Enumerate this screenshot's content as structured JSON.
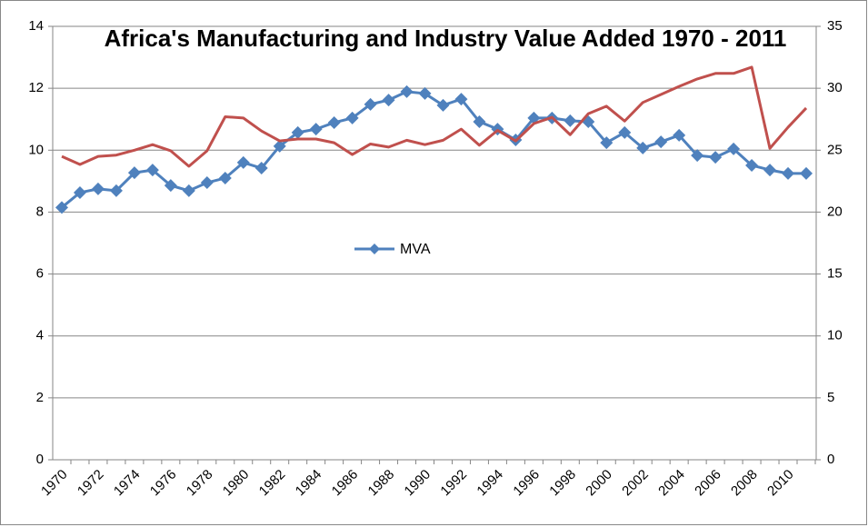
{
  "chart_data": {
    "type": "line",
    "title": "Africa's Manufacturing and Industry Value Added 1970 - 2011",
    "categories": [
      "1970",
      null,
      "1972",
      null,
      "1974",
      null,
      "1976",
      null,
      "1978",
      null,
      "1980",
      null,
      "1982",
      null,
      "1984",
      null,
      "1986",
      null,
      "1988",
      null,
      "1990",
      null,
      "1992",
      null,
      "1994",
      null,
      "1996",
      null,
      "1998",
      null,
      "2000",
      null,
      "2002",
      null,
      "2004",
      null,
      "2006",
      null,
      "2008",
      null,
      "2010",
      null
    ],
    "series": [
      {
        "name": "MVA",
        "color": "#4f81bd",
        "marker": "diamond",
        "values": [
          8.15,
          8.63,
          8.75,
          8.69,
          9.27,
          9.36,
          8.86,
          8.69,
          8.95,
          9.1,
          9.6,
          9.42,
          10.13,
          10.57,
          10.68,
          10.89,
          11.04,
          11.48,
          11.62,
          11.89,
          11.83,
          11.45,
          11.65,
          10.92,
          10.68,
          10.33,
          11.04,
          11.04,
          10.95,
          10.92,
          10.24,
          10.57,
          10.07,
          10.27,
          10.48,
          9.83,
          9.77,
          10.04,
          9.51,
          9.36,
          9.25,
          9.25
        ]
      },
      {
        "color": "#c0504d",
        "axis": "y2",
        "values": [
          24.5,
          23.85,
          24.5,
          24.6,
          25.0,
          25.45,
          24.95,
          23.7,
          24.95,
          27.7,
          27.6,
          26.55,
          25.75,
          25.9,
          25.9,
          25.6,
          24.65,
          25.5,
          25.25,
          25.8,
          25.45,
          25.8,
          26.7,
          25.4,
          26.6,
          25.75,
          27.15,
          27.65,
          26.25,
          27.95,
          28.55,
          27.35,
          28.85,
          29.5,
          30.15,
          30.75,
          31.2,
          31.2,
          31.7,
          25.15,
          26.85,
          28.4
        ]
      }
    ],
    "ylim": [
      0,
      14
    ],
    "yticks": [
      0,
      2,
      4,
      6,
      8,
      10,
      12,
      14
    ],
    "y2lim": [
      0,
      35
    ],
    "y2ticks": [
      0,
      5,
      10,
      15,
      20,
      25,
      30,
      35
    ],
    "grid": true
  }
}
